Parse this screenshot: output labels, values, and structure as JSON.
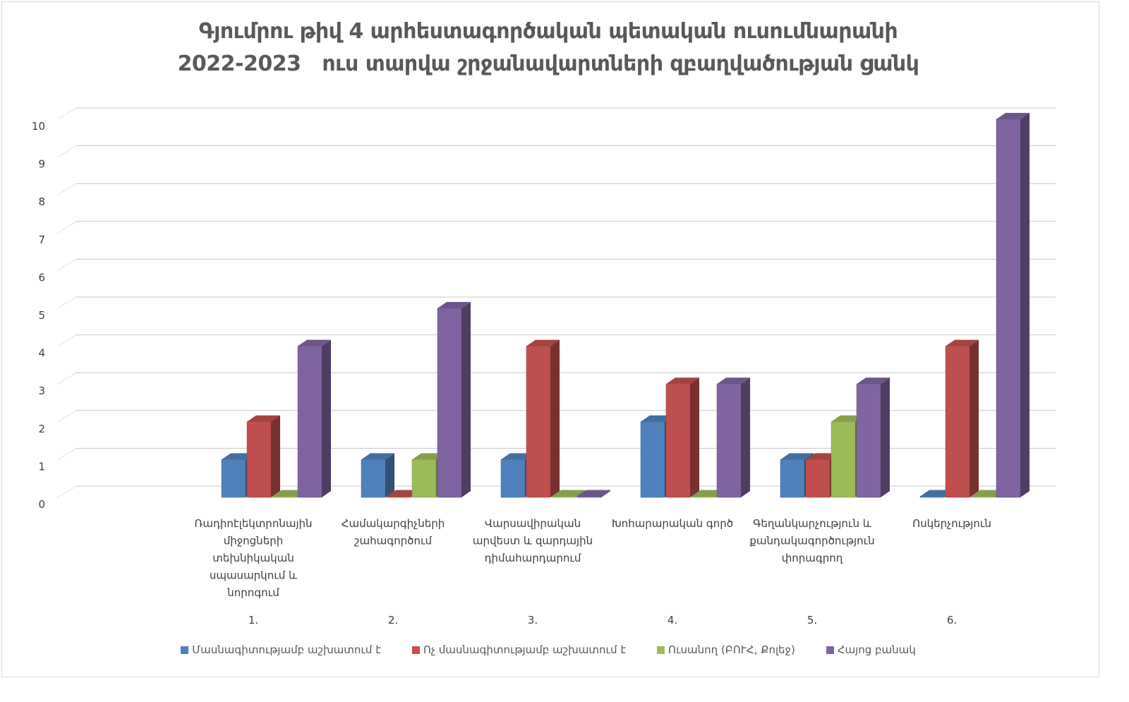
{
  "chart_data": {
    "type": "bar",
    "title": [
      "Գյումրու թիվ 4 արհեստագործական պետական ուսումնարանի",
      "2022-2023   ուս տարվա շրջանավարտների զբաղվածության ցանկ"
    ],
    "categories": [
      [
        "Ռադիոէլեկտրոնային",
        "միջոցների",
        "տեխնիկական",
        "սպասարկում և",
        "նորոգում"
      ],
      [
        "Համակարգիչների",
        "շահագործում"
      ],
      [
        "Վարսավիրական",
        "արվեստ և զարդային",
        "դիմահարդարում"
      ],
      [
        "Խոհարարական գործ"
      ],
      [
        "Գեղանկարչություն և",
        "քանդակագործություն",
        "փորագրող"
      ],
      [
        "Ոսկերչություն"
      ]
    ],
    "category_numbers": [
      "1.",
      "2.",
      "3.",
      "4.",
      "5.",
      "6."
    ],
    "series": [
      {
        "name": "Մասնագիտությամբ աշխատում է",
        "color": "#4F81BD",
        "values": [
          1,
          1,
          1,
          2,
          1,
          0
        ]
      },
      {
        "name": "Ոչ մասնագիտությամբ աշխատում է",
        "color": "#C0504D",
        "values": [
          2,
          0,
          4,
          3,
          1,
          4
        ]
      },
      {
        "name": "Ուսանող (ԲՈՒՀ, Քոլեջ)",
        "color": "#9BBB59",
        "values": [
          0,
          1,
          0,
          0,
          2,
          0
        ]
      },
      {
        "name": "Հայոց բանակ",
        "color": "#8064A2",
        "values": [
          4,
          5,
          0,
          3,
          3,
          10
        ]
      }
    ],
    "ylim": [
      0,
      10
    ],
    "yticks": [
      "0",
      "1",
      "2",
      "3",
      "4",
      "5",
      "6",
      "7",
      "8",
      "9",
      "10"
    ],
    "grid": true,
    "legend_position": "bottom"
  }
}
